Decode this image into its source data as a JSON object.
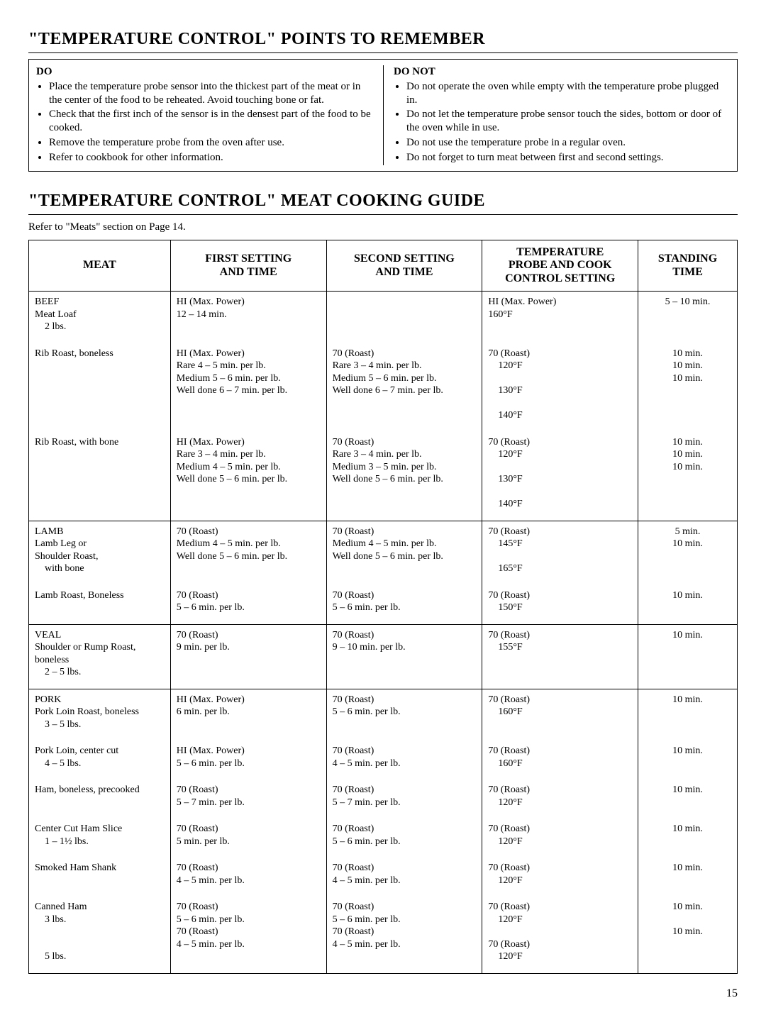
{
  "title1": "\"TEMPERATURE CONTROL\" POINTS TO REMEMBER",
  "points": {
    "doHead": "DO",
    "doItems": [
      "Place the temperature probe sensor into the thickest part of the meat or in the center of the food to be reheated. Avoid touching bone or fat.",
      "Check that the first inch of the sensor is in the densest part of the food to be cooked.",
      "Remove the temperature probe from the oven after use.",
      "Refer to cookbook for other information."
    ],
    "dontHead": "DO NOT",
    "dontItems": [
      "Do not operate the oven while empty with the temperature probe plugged in.",
      "Do not let the temperature probe sensor touch the sides, bottom or door of the oven while in use.",
      "Do not use the temperature probe in a regular oven.",
      "Do not forget to turn meat between first and second settings."
    ]
  },
  "title2": "\"TEMPERATURE CONTROL\" MEAT COOKING GUIDE",
  "refline": "Refer to \"Meats\" section on Page 14.",
  "headers": {
    "meat": "MEAT",
    "first": "FIRST SETTING\nAND TIME",
    "second": "SECOND SETTING\nAND TIME",
    "temp": "TEMPERATURE\nPROBE AND COOK\nCONTROL SETTING",
    "stand": "STANDING\nTIME"
  },
  "rows": [
    {
      "sep": false,
      "meat": "BEEF\nMeat Loaf\n  2 lbs.",
      "first": "HI (Max. Power)\n12 – 14 min.",
      "second": "",
      "temp": "HI (Max. Power)\n160°F",
      "stand": "5 – 10 min."
    },
    {
      "sep": false,
      "meat": "Rib Roast, boneless",
      "first": "HI (Max. Power)\nRare 4 – 5 min. per lb.\nMedium 5 – 6 min. per lb.\nWell done 6 – 7 min. per lb.",
      "second": "70 (Roast)\nRare 3 – 4 min. per lb.\nMedium 5 – 6 min. per lb.\nWell done 6 – 7 min. per lb.",
      "temp": "70 (Roast)\n  120°F\n  130°F\n  140°F",
      "stand": "10 min.\n10 min.\n10 min."
    },
    {
      "sep": false,
      "meat": "Rib Roast, with bone",
      "first": "HI (Max. Power)\nRare 3 – 4 min. per lb.\nMedium 4 – 5 min. per lb.\nWell done 5 – 6 min. per lb.",
      "second": "70 (Roast)\nRare 3 – 4 min. per lb.\nMedium 3 – 5 min. per lb.\nWell done 5 – 6 min. per lb.",
      "temp": "70 (Roast)\n  120°F\n  130°F\n  140°F",
      "stand": "10 min.\n10 min.\n10 min."
    },
    {
      "sep": true,
      "meat": "LAMB\nLamb Leg or\nShoulder Roast,\n  with bone",
      "first": "70 (Roast)\nMedium 4 – 5 min. per lb.\nWell done 5 – 6 min. per lb.",
      "second": "70 (Roast)\nMedium 4 – 5 min. per lb.\nWell done 5 – 6 min. per lb.",
      "temp": "70 (Roast)\n  145°F\n  165°F",
      "stand": "5 min.\n10 min."
    },
    {
      "sep": false,
      "meat": "Lamb Roast, Boneless",
      "first": "70 (Roast)\n5 – 6 min. per lb.",
      "second": "70 (Roast)\n5 – 6 min. per lb.",
      "temp": "70 (Roast)\n  150°F",
      "stand": "10 min."
    },
    {
      "sep": true,
      "meat": "VEAL\nShoulder or Rump Roast,\nboneless\n  2 – 5 lbs.",
      "first": "70 (Roast)\n9 min. per lb.",
      "second": "70 (Roast)\n9 – 10 min. per lb.",
      "temp": "70 (Roast)\n  155°F",
      "stand": "10 min."
    },
    {
      "sep": true,
      "meat": "PORK\nPork Loin Roast, boneless\n  3 – 5 lbs.",
      "first": "HI (Max. Power)\n6 min. per lb.",
      "second": "70 (Roast)\n5 – 6 min. per lb.",
      "temp": "70 (Roast)\n  160°F",
      "stand": "10 min."
    },
    {
      "sep": false,
      "meat": "Pork Loin, center cut\n  4 – 5 lbs.",
      "first": "HI (Max. Power)\n5 – 6 min. per lb.",
      "second": "70 (Roast)\n4 – 5 min. per lb.",
      "temp": "70 (Roast)\n  160°F",
      "stand": "10 min."
    },
    {
      "sep": false,
      "meat": "Ham, boneless, precooked",
      "first": "70 (Roast)\n5 – 7 min. per lb.",
      "second": "70 (Roast)\n5 – 7 min. per lb.",
      "temp": "70 (Roast)\n  120°F",
      "stand": "10 min."
    },
    {
      "sep": false,
      "meat": "Center Cut Ham Slice\n  1 – 1½ lbs.",
      "first": "70 (Roast)\n5 min. per lb.",
      "second": "70 (Roast)\n5 – 6 min. per lb.",
      "temp": "70 (Roast)\n  120°F",
      "stand": "10 min."
    },
    {
      "sep": false,
      "meat": "Smoked Ham Shank",
      "first": "70 (Roast)\n4 – 5 min. per lb.",
      "second": "70 (Roast)\n4 – 5 min. per lb.",
      "temp": "70 (Roast)\n  120°F",
      "stand": "10 min."
    },
    {
      "sep": false,
      "meat": "Canned Ham\n  3 lbs.\n\n  5 lbs.",
      "first": "70 (Roast)\n5 – 6 min. per lb.\n70 (Roast)\n4 – 5 min. per lb.",
      "second": "70 (Roast)\n5 – 6 min. per lb.\n70 (Roast)\n4 – 5 min. per lb.",
      "temp": "70 (Roast)\n  120°F\n70 (Roast)\n  120°F",
      "stand": "10 min.\n\n10 min."
    }
  ],
  "pageNum": "15"
}
